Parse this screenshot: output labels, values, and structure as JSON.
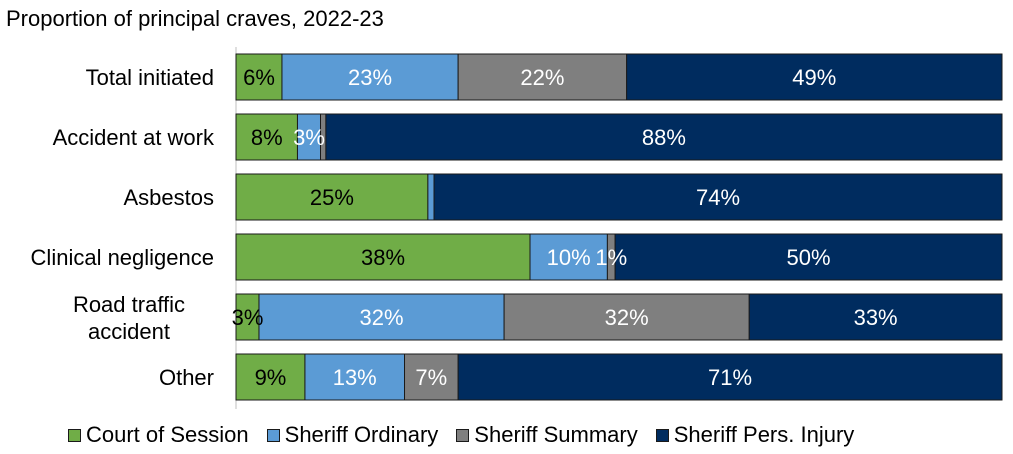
{
  "chart_data": {
    "type": "bar",
    "orientation": "horizontal",
    "stacked": true,
    "title": "Proportion of principal craves, 2022-23",
    "categories": [
      "Total initiated",
      "Accident at work",
      "Asbestos",
      "Clinical negligence",
      "Road traffic accident",
      "Other"
    ],
    "category_lines": [
      [
        "Total initiated"
      ],
      [
        "Accident at work"
      ],
      [
        "Asbestos"
      ],
      [
        "Clinical negligence"
      ],
      [
        "Road traffic",
        "accident"
      ],
      [
        "Other"
      ]
    ],
    "xlim": [
      0,
      100
    ],
    "series": [
      {
        "name": "Court of Session",
        "color": "#70ad47",
        "label_color": "#000000",
        "values": [
          6,
          8,
          25,
          38,
          3,
          9
        ],
        "labels": [
          "6%",
          "8%",
          "25%",
          "38%",
          "3%",
          "9%"
        ]
      },
      {
        "name": "Sheriff Ordinary",
        "color": "#5b9bd5",
        "label_color": "#ffffff",
        "values": [
          23,
          3,
          0.8,
          10,
          32,
          13
        ],
        "labels": [
          "23%",
          "3%",
          "",
          "10%",
          "32%",
          "13%"
        ]
      },
      {
        "name": "Sheriff Summary",
        "color": "#7f7f7f",
        "label_color": "#ffffff",
        "values": [
          22,
          0.7,
          0,
          1,
          32,
          7
        ],
        "labels": [
          "22%",
          "",
          "",
          "1%",
          "32%",
          "7%"
        ]
      },
      {
        "name": "Sheriff Pers. Injury",
        "color": "#002c5f",
        "label_color": "#ffffff",
        "values": [
          49,
          88,
          74,
          50,
          33,
          71
        ],
        "labels": [
          "49%",
          "88%",
          "74%",
          "50%",
          "33%",
          "71%"
        ]
      }
    ]
  }
}
